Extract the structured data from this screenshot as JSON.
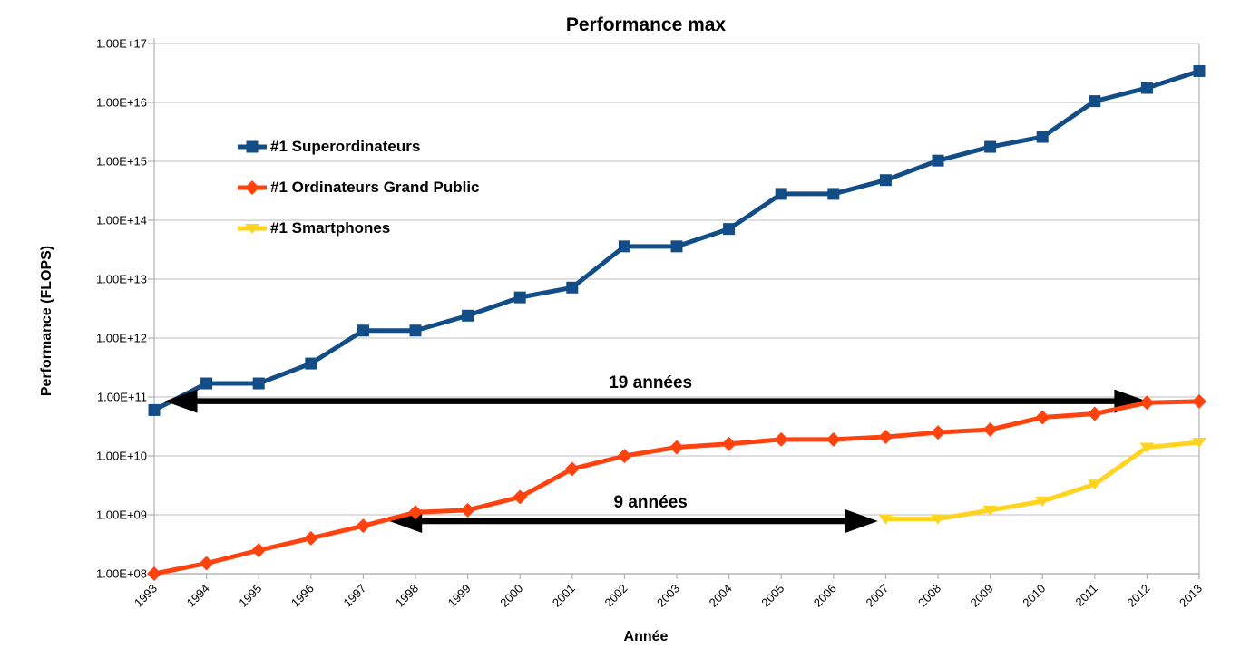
{
  "chart_data": {
    "type": "line",
    "title": "Performance max",
    "xlabel": "Année",
    "ylabel": "Performance (FLOPS)",
    "y_scale": "log",
    "ylim": [
      100000000.0,
      1e+17
    ],
    "grid": "horizontal",
    "legend_position": "inside-upper-left",
    "x_categories": [
      1993,
      1994,
      1995,
      1996,
      1997,
      1998,
      1999,
      2000,
      2001,
      2002,
      2003,
      2004,
      2005,
      2006,
      2007,
      2008,
      2009,
      2010,
      2011,
      2012,
      2013
    ],
    "yticks": [
      {
        "label": "1.00E+08",
        "value": 100000000.0
      },
      {
        "label": "1.00E+09",
        "value": 1000000000.0
      },
      {
        "label": "1.00E+10",
        "value": 10000000000.0
      },
      {
        "label": "1.00E+11",
        "value": 100000000000.0
      },
      {
        "label": "1.00E+12",
        "value": 1000000000000.0
      },
      {
        "label": "1.00E+13",
        "value": 10000000000000.0
      },
      {
        "label": "1.00E+14",
        "value": 100000000000000.0
      },
      {
        "label": "1.00E+15",
        "value": 1000000000000000.0
      },
      {
        "label": "1.00E+16",
        "value": 1e+16
      },
      {
        "label": "1.00E+17",
        "value": 1e+17
      }
    ],
    "series": [
      {
        "name": "#1 Superordinateurs",
        "color": "#134d87",
        "marker": "square",
        "values": [
          60000000000.0,
          170000000000.0,
          170000000000.0,
          370000000000.0,
          1340000000000.0,
          1340000000000.0,
          2400000000000.0,
          4900000000000.0,
          7200000000000.0,
          36000000000000.0,
          36000000000000.0,
          71000000000000.0,
          280000000000000.0,
          280000000000000.0,
          480000000000000.0,
          1030000000000000.0,
          1760000000000000.0,
          2600000000000000.0,
          1.05e+16,
          1.76e+16,
          3.4e+16
        ]
      },
      {
        "name": "#1 Ordinateurs Grand Public",
        "color": "#ff420e",
        "marker": "diamond",
        "values": [
          100000000.0,
          150000000.0,
          250000000.0,
          400000000.0,
          650000000.0,
          1100000000.0,
          1200000000.0,
          2000000000.0,
          6000000000.0,
          10000000000.0,
          14000000000.0,
          16000000000.0,
          19000000000.0,
          19000000000.0,
          21000000000.0,
          25000000000.0,
          28000000000.0,
          45000000000.0,
          52000000000.0,
          80000000000.0,
          84000000000.0
        ]
      },
      {
        "name": "#1 Smartphones",
        "color": "#ffd320",
        "marker": "triangle-down",
        "values": [
          null,
          null,
          null,
          null,
          null,
          null,
          null,
          null,
          null,
          null,
          null,
          null,
          null,
          null,
          850000000.0,
          850000000.0,
          1200000000.0,
          1700000000.0,
          3300000000.0,
          14000000000.0,
          17000000000.0
        ]
      }
    ],
    "annotations": [
      {
        "label": "19 années",
        "value": 85000000000.0,
        "from_x": 1993.2,
        "to_x": 2012.0,
        "label_x": 2002.5
      },
      {
        "label": "9 années",
        "value": 780000000.0,
        "from_x": 1997.5,
        "to_x": 2006.85,
        "label_x": 2002.5
      }
    ]
  },
  "colors": {
    "background": "#ffffff",
    "grid": "#c9c9c9",
    "axis": "#b0b0b0",
    "text": "#000000",
    "arrow": "#000000"
  }
}
